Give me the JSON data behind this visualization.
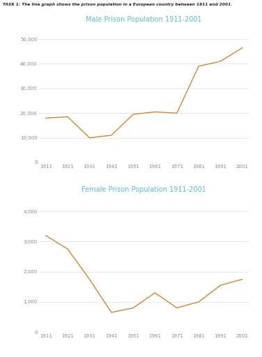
{
  "years": [
    1911,
    1921,
    1931,
    1941,
    1951,
    1961,
    1971,
    1981,
    1991,
    2001
  ],
  "male_values": [
    18000,
    18500,
    10000,
    11000,
    19500,
    20500,
    20000,
    39000,
    41000,
    46500
  ],
  "female_values": [
    3200,
    2750,
    1750,
    650,
    800,
    1300,
    800,
    1000,
    1550,
    1750
  ],
  "title_male": "Male Prison Population 1911-2001",
  "title_female": "Female Prison Population 1911-2001",
  "task_label": "TASK 1: The line graph shows the prison population in a European country between 1911 and 2001.",
  "line_color": "#CC8833",
  "title_color": "#5BBCCC",
  "task_label_color": "#222222",
  "bg_color": "#FFFFFF",
  "male_ylim": [
    0,
    55000
  ],
  "male_yticks": [
    0,
    10000,
    20000,
    30000,
    40000,
    50000
  ],
  "female_ylim": [
    0,
    4500
  ],
  "female_yticks": [
    0,
    1000,
    2000,
    3000,
    4000
  ],
  "grid_color": "#e0e0e0",
  "tick_label_color": "#888888"
}
